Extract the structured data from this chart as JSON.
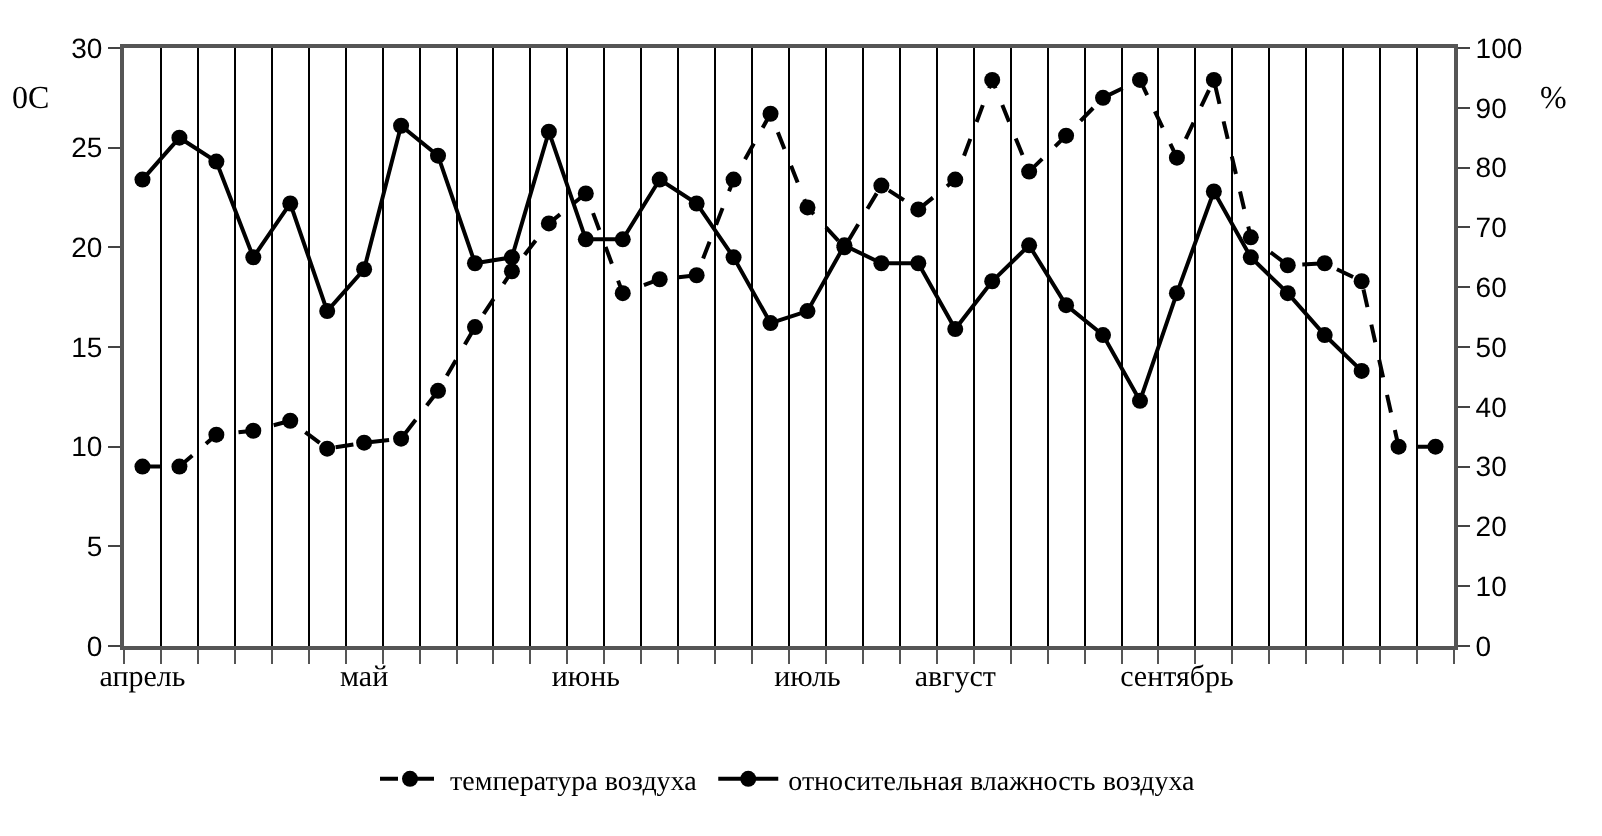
{
  "chart_data": {
    "type": "line",
    "ylabel": "0C",
    "y2label": "%",
    "categories": [
      "апрель",
      null,
      null,
      null,
      null,
      null,
      "май",
      null,
      null,
      null,
      null,
      null,
      "июнь",
      null,
      null,
      null,
      null,
      null,
      "июль",
      null,
      null,
      null,
      "август",
      null,
      null,
      null,
      null,
      null,
      "сентябрь",
      null,
      null,
      null,
      null,
      null,
      null,
      null
    ],
    "series": [
      {
        "name": "температура воздуха",
        "color": "#000000",
        "line_style": "dashed",
        "values": [
          9.0,
          9.0,
          10.6,
          10.8,
          11.3,
          9.9,
          10.2,
          10.4,
          12.8,
          16.0,
          18.8,
          21.2,
          22.7,
          17.7,
          18.4,
          18.6,
          23.4,
          26.7,
          22.0,
          20.0,
          23.1,
          21.9,
          23.4,
          28.4,
          23.8,
          25.6,
          27.5,
          28.4,
          24.5,
          28.4,
          20.5,
          19.1,
          19.2,
          18.3,
          10.0,
          10.0
        ]
      },
      {
        "name": "относительная влажность воздуха",
        "color": "#000000",
        "line_style": "solid",
        "axis": "y2",
        "values": [
          78,
          85,
          81,
          65,
          74,
          56,
          63,
          87,
          82,
          64,
          65,
          86,
          68,
          68,
          78,
          74,
          65,
          54,
          56,
          67,
          64,
          64,
          53,
          61,
          67,
          57,
          52,
          41,
          59,
          76,
          65,
          59,
          52,
          46,
          null,
          null
        ]
      }
    ],
    "ylim": [
      0,
      30
    ],
    "yticks": [
      0,
      5,
      10,
      15,
      20,
      25,
      30
    ],
    "y2lim": [
      0,
      100
    ],
    "y2ticks": [
      0,
      10,
      20,
      30,
      40,
      50,
      60,
      70,
      80,
      90,
      100
    ],
    "grid": "x",
    "legend": "bottom",
    "marker": "circle"
  }
}
